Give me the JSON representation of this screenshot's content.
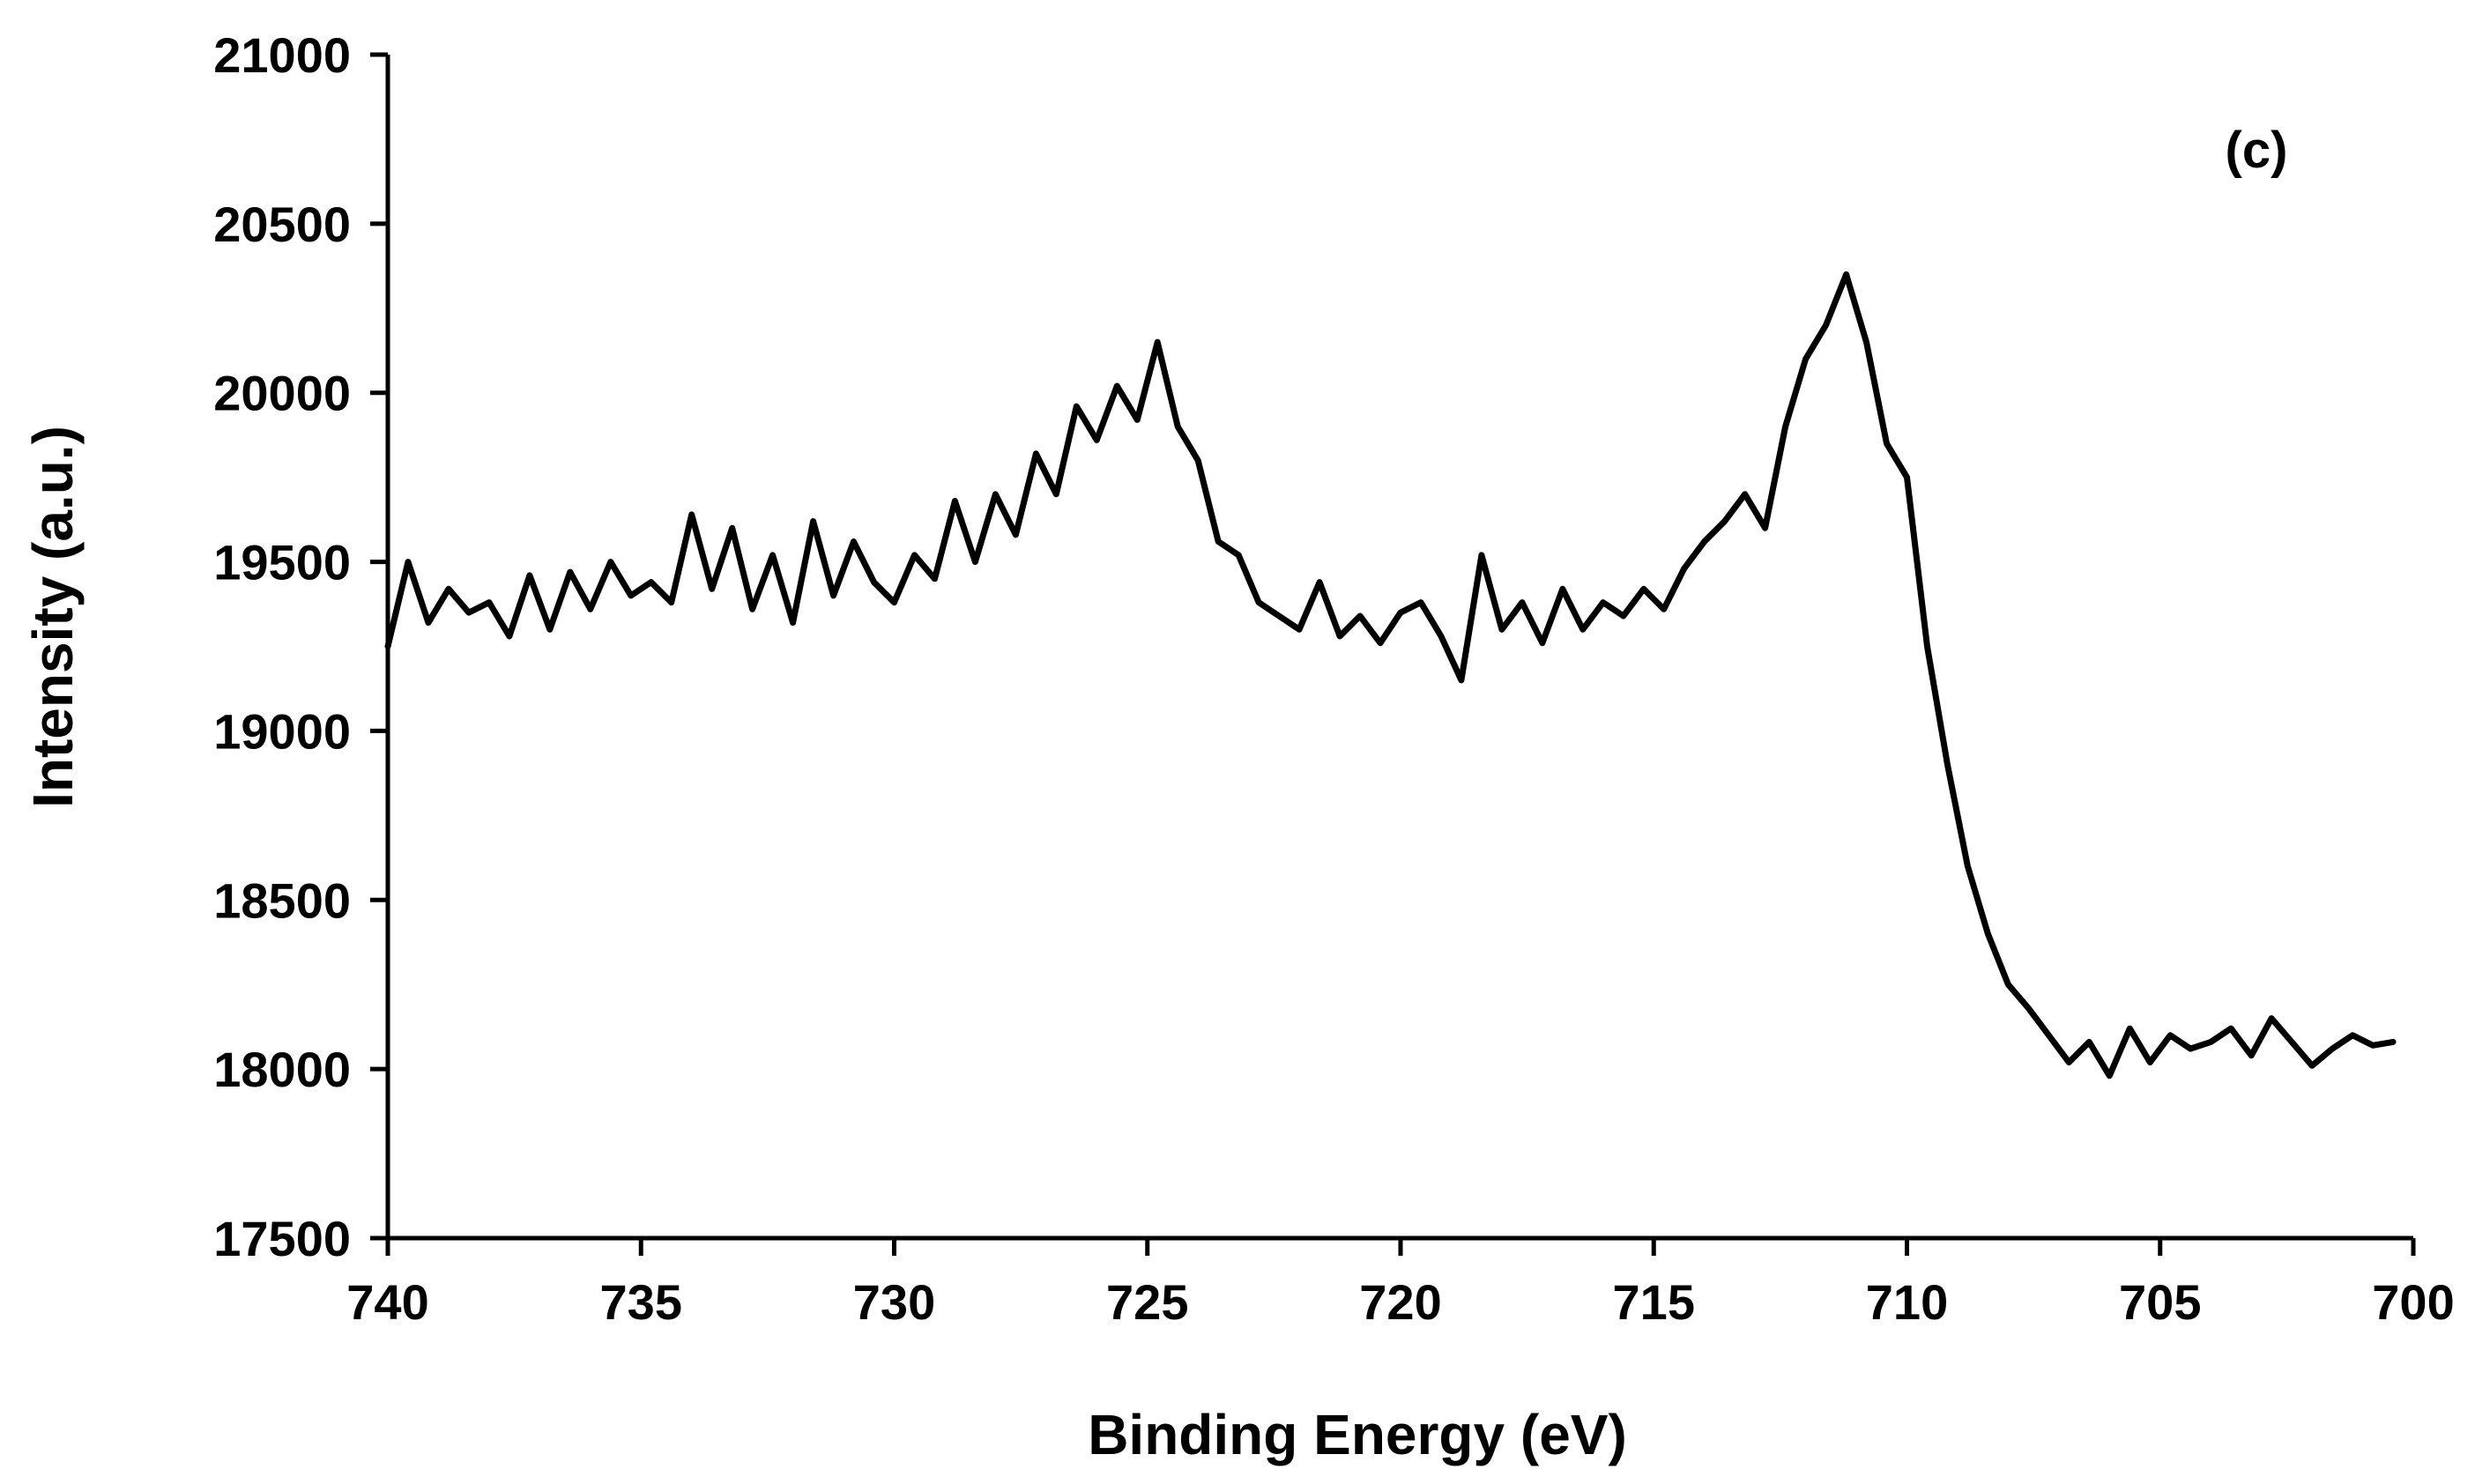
{
  "chart_data": {
    "type": "line",
    "title": "",
    "panel_label": "(c)",
    "xlabel": "Binding Energy (eV)",
    "ylabel": "Intensity (a.u.)",
    "xlim": [
      740,
      700
    ],
    "x_reversed": true,
    "ylim": [
      17500,
      21000
    ],
    "xticks": [
      "740",
      "735",
      "730",
      "725",
      "720",
      "715",
      "710",
      "705",
      "700"
    ],
    "yticks": [
      "17500",
      "18000",
      "18500",
      "19000",
      "19500",
      "20000",
      "20500",
      "21000"
    ],
    "grid": false,
    "legend": "none",
    "line_color": "#000000",
    "series": [
      {
        "x": [
          740.0,
          739.6,
          739.2,
          738.8,
          738.4,
          738.0,
          737.6,
          737.2,
          736.8,
          736.4,
          736.0,
          735.6,
          735.2,
          734.8,
          734.4,
          734.0,
          733.6,
          733.2,
          732.8,
          732.4,
          732.0,
          731.6,
          731.2,
          730.8,
          730.4,
          730.0,
          729.6,
          729.2,
          728.8,
          728.4,
          728.0,
          727.6,
          727.2,
          726.8,
          726.4,
          726.0,
          725.6,
          725.2,
          724.8,
          724.4,
          724.0,
          723.6,
          723.2,
          722.8,
          722.4,
          722.0,
          721.6,
          721.2,
          720.8,
          720.4,
          720.0,
          719.6,
          719.2,
          718.8,
          718.4,
          718.0,
          717.6,
          717.2,
          716.8,
          716.4,
          716.0,
          715.6,
          715.2,
          714.8,
          714.4,
          714.0,
          713.6,
          713.2,
          712.8,
          712.4,
          712.0,
          711.6,
          711.2,
          710.8,
          710.4,
          710.0,
          709.6,
          709.2,
          708.8,
          708.4,
          708.0,
          707.6,
          707.2,
          706.8,
          706.4,
          706.0,
          705.6,
          705.2,
          704.8,
          704.4,
          704.0,
          703.6,
          703.2,
          702.8,
          702.4,
          702.0,
          701.6,
          701.2,
          700.8,
          700.4
        ],
        "y": [
          19250,
          19500,
          19320,
          19420,
          19350,
          19380,
          19280,
          19460,
          19300,
          19470,
          19360,
          19500,
          19400,
          19440,
          19380,
          19640,
          19420,
          19600,
          19360,
          19520,
          19320,
          19620,
          19400,
          19560,
          19440,
          19380,
          19520,
          19450,
          19680,
          19500,
          19700,
          19580,
          19820,
          19700,
          19960,
          19860,
          20020,
          19920,
          20150,
          19900,
          19800,
          19560,
          19520,
          19380,
          19340,
          19300,
          19440,
          19280,
          19340,
          19260,
          19350,
          19380,
          19280,
          19150,
          19520,
          19300,
          19380,
          19260,
          19420,
          19300,
          19380,
          19340,
          19420,
          19360,
          19480,
          19560,
          19620,
          19700,
          19600,
          19900,
          20100,
          20200,
          20350,
          20150,
          19850,
          19750,
          19250,
          18900,
          18600,
          18400,
          18250,
          18180,
          18100,
          18020,
          18080,
          17980,
          18120,
          18020,
          18100,
          18060,
          18080,
          18120,
          18040,
          18150,
          18080,
          18010,
          18060,
          18100,
          18070,
          18080
        ]
      }
    ]
  }
}
